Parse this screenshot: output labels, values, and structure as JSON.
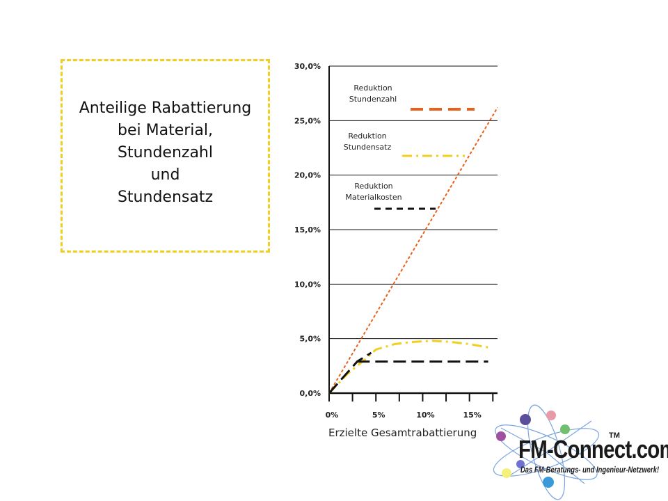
{
  "title_lines": [
    "Anteilige Rabattierung",
    "bei Material,",
    "Stundenzahl",
    "und",
    "Stundensatz"
  ],
  "colors": {
    "title_box_border": "#f2cf1e",
    "stundenzahl": "#e8601c",
    "stundensatz": "#f2cf1e",
    "materialkosten": "#111111"
  },
  "chart_data": {
    "type": "line",
    "xlabel": "Erzielte Gesamtrabattierung",
    "ylabel": "",
    "y_ticks": [
      "0,0%",
      "5,0%",
      "10,0%",
      "15,0%",
      "20,0%",
      "25,0%",
      "30,0%"
    ],
    "x_ticks": [
      "0%",
      "5%",
      "10%",
      "15%"
    ],
    "xlim": [
      0,
      18
    ],
    "ylim": [
      0,
      30
    ],
    "grid": true,
    "legend_position": "inside-top",
    "series": [
      {
        "name": "Reduktion Stundenzahl",
        "legend_label_lines": [
          "Reduktion",
          "Stundenzahl"
        ],
        "color_key": "stundenzahl",
        "style": "dashed-fine",
        "x": [
          0,
          18
        ],
        "y": [
          0,
          26.2
        ]
      },
      {
        "name": "Reduktion Stundensatz",
        "legend_label_lines": [
          "Reduktion",
          "Stundensatz"
        ],
        "color_key": "stundensatz",
        "style": "dash-dot",
        "x": [
          0,
          2,
          4,
          5,
          7,
          9,
          11,
          13,
          15,
          17
        ],
        "y": [
          0,
          1.8,
          3.2,
          4.0,
          4.5,
          4.7,
          4.8,
          4.7,
          4.5,
          4.2
        ]
      },
      {
        "name": "Reduktion Materialkosten",
        "legend_label_lines": [
          "Reduktion",
          "Materialkosten"
        ],
        "color_key": "materialkosten",
        "style": "dashed-long",
        "x": [
          0,
          3,
          4.5
        ],
        "y": [
          0,
          2.9,
          3.7
        ],
        "plateau": {
          "x": [
            3,
            17
          ],
          "y": [
            2.9,
            2.9
          ]
        }
      }
    ]
  },
  "logo": {
    "name": "FM-Connect.com",
    "tm": "TM",
    "tagline": "Das FM-Beratungs- und Ingenieur-Netzwerk!"
  }
}
